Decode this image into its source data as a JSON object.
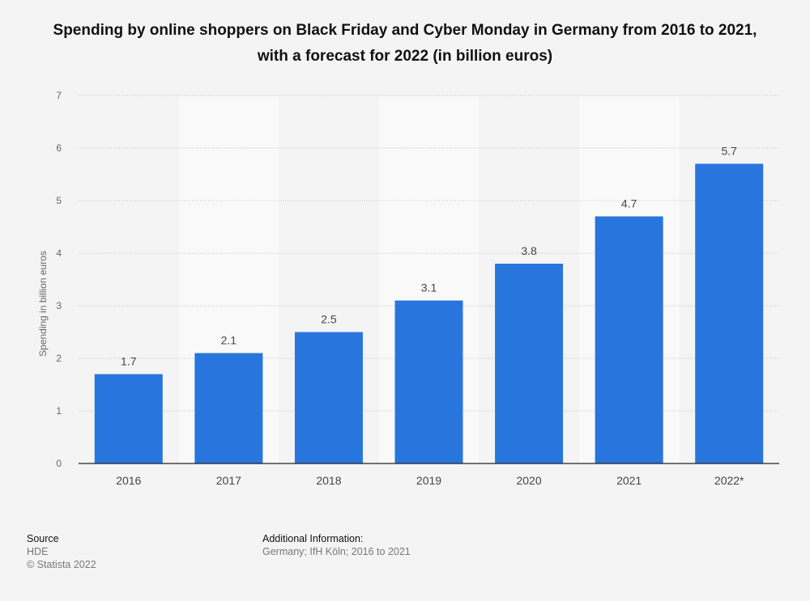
{
  "chart_data": {
    "type": "bar",
    "title": "Spending by online shoppers on Black Friday and Cyber Monday in Germany from 2016 to 2021, with a forecast for 2022 (in billion euros)",
    "xlabel": "",
    "ylabel": "Spending in billion euros",
    "ylim": [
      0,
      7
    ],
    "yticks": [
      "0",
      "1",
      "2",
      "3",
      "4",
      "5",
      "6",
      "7"
    ],
    "categories": [
      "2016",
      "2017",
      "2018",
      "2019",
      "2020",
      "2021",
      "2022*"
    ],
    "values": [
      1.7,
      2.1,
      2.5,
      3.1,
      3.8,
      4.7,
      5.7
    ],
    "data_labels": [
      "1.7",
      "2.1",
      "2.5",
      "3.1",
      "3.8",
      "4.7",
      "5.7"
    ],
    "grid": true,
    "bar_color": "#2876dd"
  },
  "footer": {
    "source_heading": "Source",
    "source": "HDE",
    "copyright": "© Statista 2022",
    "info_heading": "Additional Information:",
    "info": "Germany; IfH Köln; 2016 to 2021"
  }
}
